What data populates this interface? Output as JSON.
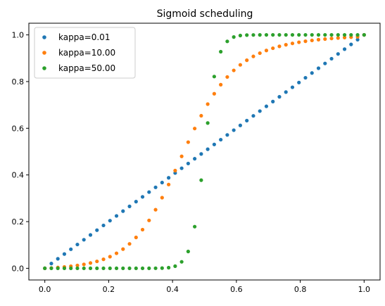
{
  "chart_data": {
    "type": "scatter",
    "title": "Sigmoid scheduling",
    "xlabel": "",
    "ylabel": "",
    "xlim": [
      -0.05,
      1.05
    ],
    "ylim": [
      -0.05,
      1.05
    ],
    "xticks": [
      "0.0",
      "0.2",
      "0.4",
      "0.6",
      "0.8",
      "1.0"
    ],
    "yticks": [
      "0.0",
      "0.2",
      "0.4",
      "0.6",
      "0.8",
      "1.0"
    ],
    "grid": false,
    "legend_position": "top-left",
    "x": [
      0,
      0.0204,
      0.0408,
      0.0612,
      0.0816,
      0.102,
      0.1224,
      0.1429,
      0.1633,
      0.1837,
      0.2041,
      0.2245,
      0.2449,
      0.2653,
      0.2857,
      0.3061,
      0.3265,
      0.3469,
      0.3673,
      0.3878,
      0.4082,
      0.4286,
      0.449,
      0.4694,
      0.4898,
      0.5102,
      0.5306,
      0.551,
      0.5714,
      0.5918,
      0.6122,
      0.6327,
      0.6531,
      0.6735,
      0.6939,
      0.7143,
      0.7347,
      0.7551,
      0.7755,
      0.7959,
      0.8163,
      0.8367,
      0.8571,
      0.8776,
      0.898,
      0.9184,
      0.9388,
      0.9592,
      0.9796,
      1.0
    ],
    "series": [
      {
        "name": "kappa=0.01",
        "color": "#1f77b4",
        "values": [
          0,
          0.0204,
          0.0408,
          0.0612,
          0.0816,
          0.102,
          0.1224,
          0.1429,
          0.1633,
          0.1837,
          0.2041,
          0.2245,
          0.2449,
          0.2653,
          0.2857,
          0.3061,
          0.3265,
          0.3469,
          0.3673,
          0.3878,
          0.4082,
          0.4286,
          0.449,
          0.4694,
          0.4898,
          0.5102,
          0.5306,
          0.551,
          0.5714,
          0.5918,
          0.6122,
          0.6327,
          0.6531,
          0.6735,
          0.6939,
          0.7143,
          0.7347,
          0.7551,
          0.7755,
          0.7959,
          0.8163,
          0.8367,
          0.8571,
          0.8776,
          0.898,
          0.9184,
          0.9388,
          0.9592,
          0.9796,
          1.0
        ]
      },
      {
        "name": "kappa=10.00",
        "color": "#ff7f0e",
        "values": [
          0,
          0.0013,
          0.0034,
          0.0058,
          0.0088,
          0.0124,
          0.0169,
          0.0226,
          0.0296,
          0.0386,
          0.0499,
          0.0643,
          0.0823,
          0.1047,
          0.1323,
          0.1656,
          0.2052,
          0.251,
          0.3026,
          0.3589,
          0.4186,
          0.4797,
          0.5404,
          0.5989,
          0.6536,
          0.7035,
          0.7479,
          0.7866,
          0.8197,
          0.8479,
          0.8716,
          0.8914,
          0.9079,
          0.9217,
          0.9332,
          0.9428,
          0.9509,
          0.9577,
          0.9635,
          0.9685,
          0.9727,
          0.9763,
          0.9795,
          0.9822,
          0.9846,
          0.9867,
          0.9886,
          0.9902,
          0.9917,
          1.0
        ]
      },
      {
        "name": "kappa=50.00",
        "color": "#2ca02c",
        "values": [
          0,
          0,
          0,
          0,
          0,
          0,
          0,
          0,
          0,
          0,
          0,
          0,
          0,
          0,
          0,
          0,
          0.0001,
          0.0003,
          0.0009,
          0.0028,
          0.0091,
          0.0278,
          0.0721,
          0.1785,
          0.3775,
          0.6225,
          0.8215,
          0.9279,
          0.9722,
          0.9909,
          0.9972,
          0.9991,
          0.9997,
          0.9999,
          1.0,
          1.0,
          1.0,
          1.0,
          1.0,
          1.0,
          1.0,
          1.0,
          1.0,
          1.0,
          1.0,
          1.0,
          1.0,
          1.0,
          1.0,
          1.0
        ]
      }
    ]
  }
}
